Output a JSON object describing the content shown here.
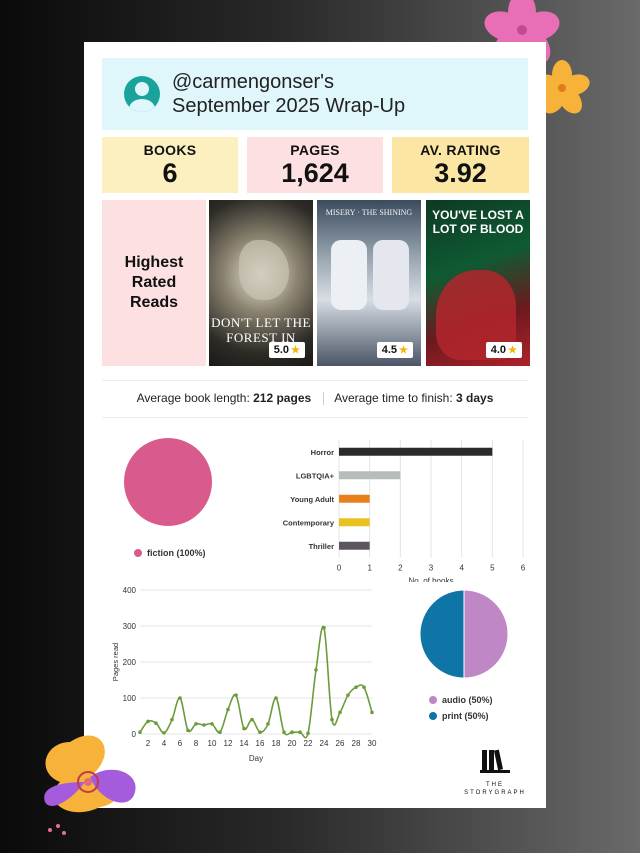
{
  "header": {
    "handle": "@carmengonser's",
    "subtitle": "September 2025 Wrap-Up"
  },
  "stats": {
    "books": {
      "label": "BOOKS",
      "value": "6"
    },
    "pages": {
      "label": "PAGES",
      "value": "1,624"
    },
    "rating": {
      "label": "AV. RATING",
      "value": "3.92"
    }
  },
  "highest_rated": {
    "label": "Highest Rated Reads",
    "books": [
      {
        "cover_text": "DON'T LET THE FOREST IN",
        "rating": "5.0"
      },
      {
        "cover_text": "MISERY · THE SHINING",
        "rating": "4.5"
      },
      {
        "cover_text": "YOU'VE LOST A LOT OF BLOOD",
        "rating": "4.0"
      }
    ]
  },
  "averages": {
    "length_label": "Average book length:",
    "length_value": "212 pages",
    "time_label": "Average time to finish:",
    "time_value": "3 days"
  },
  "colors": {
    "fiction": "#d95b8e",
    "horror": "#2b2b2b",
    "lgbtqia": "#b7bdb8",
    "young_adult": "#e8801c",
    "contemporary": "#e8c11e",
    "thriller": "#5e5360",
    "line": "#6a9c3c",
    "audio": "#c087c6",
    "print": "#0f74a6"
  },
  "chart_data": [
    {
      "type": "pie",
      "slices": [
        {
          "name": "fiction (100%)",
          "value": 100
        }
      ]
    },
    {
      "type": "bar",
      "orientation": "horizontal",
      "categories": [
        "Horror",
        "LGBTQIA+",
        "Young Adult",
        "Contemporary",
        "Thriller"
      ],
      "values": [
        5,
        2,
        1,
        1,
        1
      ],
      "xlabel": "No. of books",
      "xlim": [
        0,
        6
      ],
      "xticks": [
        "0",
        "1",
        "2",
        "3",
        "4",
        "5",
        "6"
      ]
    },
    {
      "type": "line",
      "x": [
        1,
        2,
        3,
        4,
        5,
        6,
        7,
        8,
        9,
        10,
        11,
        12,
        13,
        14,
        15,
        16,
        17,
        18,
        19,
        20,
        21,
        22,
        23,
        24,
        25,
        26,
        27,
        28,
        29,
        30
      ],
      "y": [
        5,
        35,
        30,
        3,
        40,
        100,
        10,
        28,
        25,
        28,
        5,
        68,
        108,
        15,
        40,
        5,
        28,
        100,
        5,
        5,
        5,
        2,
        178,
        295,
        40,
        60,
        108,
        130,
        130,
        60
      ],
      "xlabel": "Day",
      "ylabel": "Pages read",
      "ylim": [
        0,
        400
      ],
      "yticks": [
        "0",
        "100",
        "200",
        "300",
        "400"
      ],
      "xticks": [
        "2",
        "4",
        "6",
        "8",
        "10",
        "12",
        "14",
        "16",
        "18",
        "20",
        "22",
        "24",
        "26",
        "28",
        "30"
      ]
    },
    {
      "type": "pie",
      "slices": [
        {
          "name": "audio (50%)",
          "value": 50
        },
        {
          "name": "print (50%)",
          "value": 50
        }
      ]
    }
  ],
  "logo": {
    "text": "THE STORYGRAPH"
  }
}
